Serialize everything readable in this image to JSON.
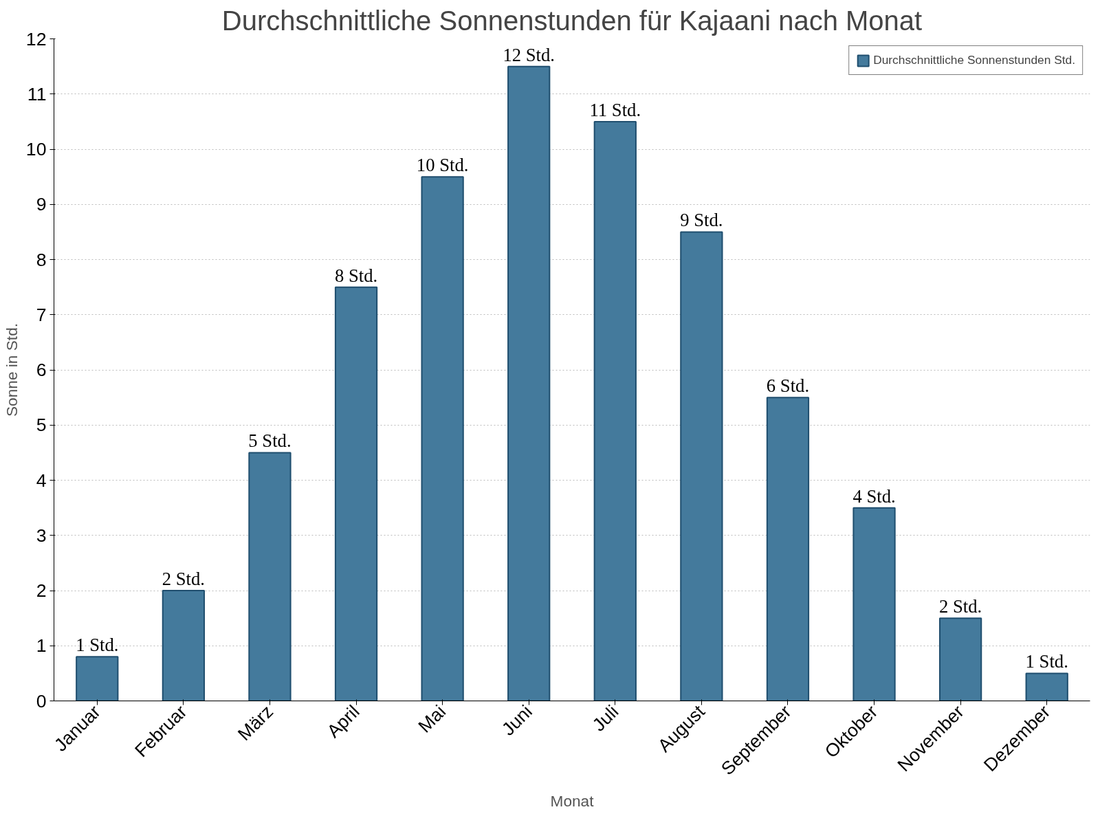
{
  "chart_data": {
    "type": "bar",
    "title": "Durchschnittliche Sonnenstunden für Kajaani nach Monat",
    "xlabel": "Monat",
    "ylabel": "Sonne in Std.",
    "categories": [
      "Januar",
      "Februar",
      "März",
      "April",
      "Mai",
      "Juni",
      "Juli",
      "August",
      "September",
      "Oktober",
      "November",
      "Dezember"
    ],
    "series": [
      {
        "name": "Durchschnittliche Sonnenstunden Std.",
        "color": "#447a9c",
        "values": [
          0.8,
          2.0,
          4.5,
          7.5,
          9.5,
          11.5,
          10.5,
          8.5,
          5.5,
          3.5,
          1.5,
          0.5
        ],
        "value_labels": [
          "1 Std.",
          "2 Std.",
          "5 Std.",
          "8 Std.",
          "10 Std.",
          "12 Std.",
          "11 Std.",
          "9 Std.",
          "6 Std.",
          "4 Std.",
          "2 Std.",
          "1 Std."
        ]
      }
    ],
    "ylim": [
      0,
      12
    ],
    "yticks": [
      0,
      1,
      2,
      3,
      4,
      5,
      6,
      7,
      8,
      9,
      10,
      11,
      12
    ],
    "grid": "y",
    "legend": "top right"
  }
}
